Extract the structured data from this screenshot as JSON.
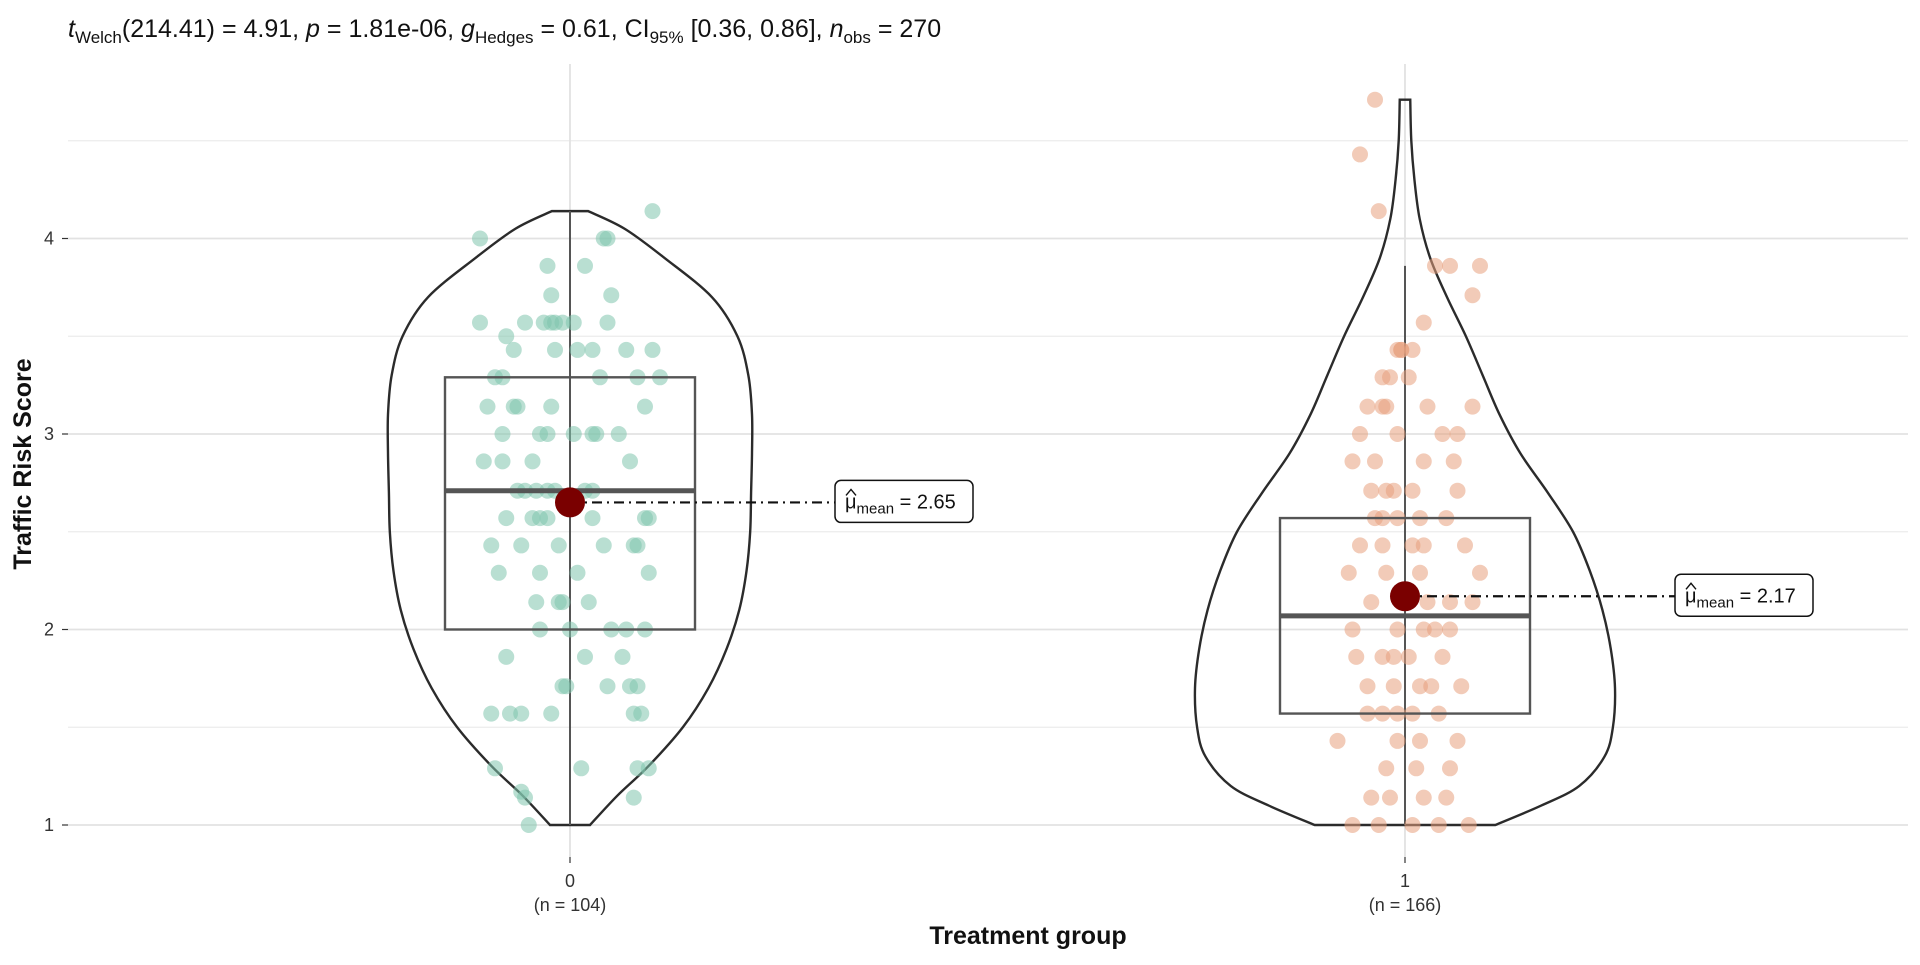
{
  "chart_data": {
    "type": "violin-box-scatter",
    "subtitle": {
      "t_label": "t",
      "t_sub": "Welch",
      "t_value": "(214.41) = 4.91, ",
      "p_label": "p",
      "p_value": " = 1.81e-06, ",
      "g_label": "g",
      "g_sub": "Hedges",
      "g_value": " = 0.61, CI",
      "ci_sub": "95%",
      "ci_value": " [0.36, 0.86], ",
      "n_label": "n",
      "n_sub": "obs",
      "n_value": " = 270"
    },
    "xlabel": "Treatment group",
    "ylabel": "Traffic Risk Score",
    "ylim": [
      0.85,
      4.95
    ],
    "yticks": [
      1,
      2,
      3,
      4
    ],
    "grid": true,
    "groups": [
      {
        "category": "0",
        "n_label": "(n = 104)",
        "color": "#7fc4ad",
        "mean": 2.65,
        "mean_label_hat": "μ",
        "mean_label_sub": "mean",
        "mean_label_value": " = 2.65",
        "box": {
          "q1": 2.0,
          "median": 2.71,
          "q3": 3.29,
          "whisker_low": 1.0,
          "whisker_high": 4.14
        },
        "violin": {
          "y": [
            1.0,
            1.15,
            1.3,
            1.5,
            1.7,
            1.9,
            2.1,
            2.3,
            2.5,
            2.7,
            2.9,
            3.1,
            3.3,
            3.5,
            3.7,
            3.9,
            4.05,
            4.14
          ],
          "w": [
            0.11,
            0.26,
            0.43,
            0.62,
            0.76,
            0.86,
            0.93,
            0.97,
            0.99,
            0.995,
            1.0,
            1.0,
            0.98,
            0.92,
            0.78,
            0.52,
            0.3,
            0.1
          ]
        },
        "points": [
          [
            -0.24,
            4.0
          ],
          [
            0.09,
            4.0
          ],
          [
            0.1,
            4.0
          ],
          [
            0.22,
            4.14
          ],
          [
            -0.06,
            3.86
          ],
          [
            0.04,
            3.86
          ],
          [
            -0.05,
            3.71
          ],
          [
            0.11,
            3.71
          ],
          [
            -0.24,
            3.57
          ],
          [
            -0.12,
            3.57
          ],
          [
            -0.07,
            3.57
          ],
          [
            -0.05,
            3.57
          ],
          [
            -0.04,
            3.57
          ],
          [
            -0.02,
            3.57
          ],
          [
            0.01,
            3.57
          ],
          [
            0.1,
            3.57
          ],
          [
            -0.17,
            3.5
          ],
          [
            -0.15,
            3.43
          ],
          [
            -0.04,
            3.43
          ],
          [
            0.02,
            3.43
          ],
          [
            0.06,
            3.43
          ],
          [
            0.15,
            3.43
          ],
          [
            0.22,
            3.43
          ],
          [
            -0.2,
            3.29
          ],
          [
            -0.18,
            3.29
          ],
          [
            0.08,
            3.29
          ],
          [
            0.18,
            3.29
          ],
          [
            0.24,
            3.29
          ],
          [
            -0.22,
            3.14
          ],
          [
            -0.15,
            3.14
          ],
          [
            -0.14,
            3.14
          ],
          [
            -0.05,
            3.14
          ],
          [
            0.2,
            3.14
          ],
          [
            -0.18,
            3.0
          ],
          [
            -0.08,
            3.0
          ],
          [
            -0.06,
            3.0
          ],
          [
            0.01,
            3.0
          ],
          [
            0.06,
            3.0
          ],
          [
            0.07,
            3.0
          ],
          [
            0.13,
            3.0
          ],
          [
            -0.23,
            2.86
          ],
          [
            -0.18,
            2.86
          ],
          [
            -0.1,
            2.86
          ],
          [
            0.16,
            2.86
          ],
          [
            -0.14,
            2.71
          ],
          [
            -0.12,
            2.71
          ],
          [
            -0.09,
            2.71
          ],
          [
            -0.06,
            2.71
          ],
          [
            -0.04,
            2.71
          ],
          [
            0.04,
            2.71
          ],
          [
            0.06,
            2.71
          ],
          [
            -0.17,
            2.57
          ],
          [
            -0.1,
            2.57
          ],
          [
            -0.08,
            2.57
          ],
          [
            -0.06,
            2.57
          ],
          [
            0.06,
            2.57
          ],
          [
            0.2,
            2.57
          ],
          [
            0.21,
            2.57
          ],
          [
            -0.21,
            2.43
          ],
          [
            -0.13,
            2.43
          ],
          [
            -0.03,
            2.43
          ],
          [
            0.09,
            2.43
          ],
          [
            0.17,
            2.43
          ],
          [
            0.18,
            2.43
          ],
          [
            -0.19,
            2.29
          ],
          [
            -0.08,
            2.29
          ],
          [
            0.02,
            2.29
          ],
          [
            0.21,
            2.29
          ],
          [
            -0.09,
            2.14
          ],
          [
            -0.03,
            2.14
          ],
          [
            -0.02,
            2.14
          ],
          [
            0.05,
            2.14
          ],
          [
            -0.08,
            2.0
          ],
          [
            0.0,
            2.0
          ],
          [
            0.11,
            2.0
          ],
          [
            0.15,
            2.0
          ],
          [
            0.2,
            2.0
          ],
          [
            -0.17,
            1.86
          ],
          [
            0.04,
            1.86
          ],
          [
            0.14,
            1.86
          ],
          [
            -0.02,
            1.71
          ],
          [
            -0.01,
            1.71
          ],
          [
            0.1,
            1.71
          ],
          [
            0.16,
            1.71
          ],
          [
            0.18,
            1.71
          ],
          [
            -0.21,
            1.57
          ],
          [
            -0.16,
            1.57
          ],
          [
            -0.13,
            1.57
          ],
          [
            -0.05,
            1.57
          ],
          [
            0.17,
            1.57
          ],
          [
            0.19,
            1.57
          ],
          [
            -0.2,
            1.29
          ],
          [
            0.03,
            1.29
          ],
          [
            0.18,
            1.29
          ],
          [
            0.21,
            1.29
          ],
          [
            -0.13,
            1.17
          ],
          [
            -0.12,
            1.14
          ],
          [
            0.17,
            1.14
          ],
          [
            -0.11,
            1.0
          ]
        ]
      },
      {
        "category": "1",
        "n_label": "(n = 166)",
        "color": "#e8a07e",
        "mean": 2.17,
        "mean_label_hat": "μ",
        "mean_label_sub": "mean",
        "mean_label_value": " = 2.17",
        "box": {
          "q1": 1.57,
          "median": 2.07,
          "q3": 2.57,
          "whisker_low": 1.0,
          "whisker_high": 3.86
        },
        "violin": {
          "y": [
            1.0,
            1.1,
            1.2,
            1.35,
            1.5,
            1.7,
            1.9,
            2.1,
            2.3,
            2.5,
            2.7,
            2.9,
            3.1,
            3.3,
            3.5,
            3.7,
            3.9,
            4.1,
            4.3,
            4.5,
            4.71
          ],
          "w": [
            0.43,
            0.65,
            0.83,
            0.95,
            0.99,
            1.0,
            0.98,
            0.94,
            0.88,
            0.8,
            0.68,
            0.55,
            0.45,
            0.37,
            0.29,
            0.2,
            0.12,
            0.07,
            0.045,
            0.03,
            0.025
          ]
        },
        "points": [
          [
            -0.08,
            4.71
          ],
          [
            -0.12,
            4.43
          ],
          [
            -0.07,
            4.14
          ],
          [
            0.08,
            3.86
          ],
          [
            0.12,
            3.86
          ],
          [
            0.2,
            3.86
          ],
          [
            0.18,
            3.71
          ],
          [
            0.05,
            3.57
          ],
          [
            -0.02,
            3.43
          ],
          [
            -0.01,
            3.43
          ],
          [
            -0.01,
            3.43
          ],
          [
            0.02,
            3.43
          ],
          [
            -0.04,
            3.29
          ],
          [
            -0.06,
            3.29
          ],
          [
            0.01,
            3.29
          ],
          [
            -0.1,
            3.14
          ],
          [
            -0.05,
            3.14
          ],
          [
            -0.06,
            3.14
          ],
          [
            0.06,
            3.14
          ],
          [
            0.18,
            3.14
          ],
          [
            -0.12,
            3.0
          ],
          [
            -0.02,
            3.0
          ],
          [
            0.14,
            3.0
          ],
          [
            0.1,
            3.0
          ],
          [
            -0.14,
            2.86
          ],
          [
            -0.08,
            2.86
          ],
          [
            0.05,
            2.86
          ],
          [
            0.13,
            2.86
          ],
          [
            -0.09,
            2.71
          ],
          [
            -0.05,
            2.71
          ],
          [
            -0.03,
            2.71
          ],
          [
            0.02,
            2.71
          ],
          [
            0.14,
            2.71
          ],
          [
            -0.08,
            2.57
          ],
          [
            -0.06,
            2.57
          ],
          [
            -0.02,
            2.57
          ],
          [
            0.04,
            2.57
          ],
          [
            0.11,
            2.57
          ],
          [
            -0.12,
            2.43
          ],
          [
            -0.06,
            2.43
          ],
          [
            0.02,
            2.43
          ],
          [
            0.05,
            2.43
          ],
          [
            0.16,
            2.43
          ],
          [
            -0.15,
            2.29
          ],
          [
            -0.05,
            2.29
          ],
          [
            0.04,
            2.29
          ],
          [
            0.2,
            2.29
          ],
          [
            -0.09,
            2.14
          ],
          [
            0.06,
            2.14
          ],
          [
            0.12,
            2.14
          ],
          [
            0.18,
            2.14
          ],
          [
            -0.14,
            2.0
          ],
          [
            -0.02,
            2.0
          ],
          [
            0.05,
            2.0
          ],
          [
            0.08,
            2.0
          ],
          [
            0.12,
            2.0
          ],
          [
            -0.13,
            1.86
          ],
          [
            -0.06,
            1.86
          ],
          [
            -0.03,
            1.86
          ],
          [
            0.01,
            1.86
          ],
          [
            0.1,
            1.86
          ],
          [
            -0.1,
            1.71
          ],
          [
            -0.03,
            1.71
          ],
          [
            0.04,
            1.71
          ],
          [
            0.07,
            1.71
          ],
          [
            0.15,
            1.71
          ],
          [
            -0.1,
            1.57
          ],
          [
            -0.06,
            1.57
          ],
          [
            -0.02,
            1.57
          ],
          [
            0.02,
            1.57
          ],
          [
            0.09,
            1.57
          ],
          [
            -0.18,
            1.43
          ],
          [
            -0.02,
            1.43
          ],
          [
            0.04,
            1.43
          ],
          [
            0.14,
            1.43
          ],
          [
            -0.05,
            1.29
          ],
          [
            0.03,
            1.29
          ],
          [
            0.12,
            1.29
          ],
          [
            -0.09,
            1.14
          ],
          [
            -0.04,
            1.14
          ],
          [
            0.05,
            1.14
          ],
          [
            0.11,
            1.14
          ],
          [
            -0.14,
            1.0
          ],
          [
            -0.07,
            1.0
          ],
          [
            0.02,
            1.0
          ],
          [
            0.09,
            1.0
          ],
          [
            0.17,
            1.0
          ]
        ]
      }
    ]
  }
}
